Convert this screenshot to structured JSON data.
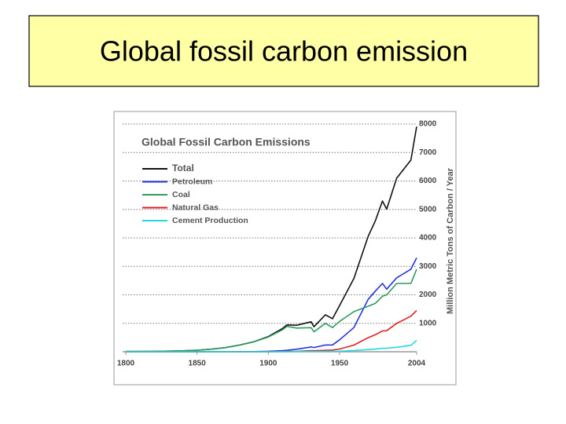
{
  "slide_title": "Global fossil carbon emission",
  "chart_data": {
    "type": "line",
    "title": "Global Fossil Carbon Emissions",
    "y_label": "Million Metric Tons of Carbon / Year",
    "x": [
      1800,
      1820,
      1840,
      1850,
      1860,
      1870,
      1880,
      1890,
      1900,
      1910,
      1913,
      1920,
      1930,
      1932,
      1940,
      1945,
      1950,
      1960,
      1970,
      1975,
      1980,
      1983,
      1990,
      2000,
      2004
    ],
    "xlim": [
      1800,
      2004
    ],
    "xticks": [
      1800,
      1850,
      1900,
      1950,
      2004
    ],
    "ylim": [
      0,
      8000
    ],
    "yticks": [
      1000,
      2000,
      3000,
      4000,
      5000,
      6000,
      7000,
      8000
    ],
    "grid": true,
    "series": [
      {
        "name": "Total",
        "color": "#111111",
        "values": [
          8,
          14,
          33,
          54,
          91,
          147,
          236,
          356,
          534,
          819,
          943,
          932,
          1053,
          881,
          1299,
          1160,
          1630,
          2577,
          4053,
          4596,
          5297,
          5010,
          6099,
          6735,
          7910
        ]
      },
      {
        "name": "Petroleum",
        "color": "#2233dd",
        "values": [
          0,
          0,
          0,
          0,
          0,
          1,
          2,
          5,
          16,
          40,
          49,
          91,
          168,
          150,
          238,
          240,
          423,
          850,
          1839,
          2130,
          2400,
          2200,
          2600,
          2900,
          3300
        ]
      },
      {
        "name": "Coal",
        "color": "#2e9a5e",
        "values": [
          8,
          14,
          33,
          54,
          91,
          146,
          234,
          350,
          518,
          776,
          891,
          832,
          848,
          700,
          1000,
          850,
          1070,
          1410,
          1600,
          1700,
          1950,
          2000,
          2400,
          2400,
          2900
        ]
      },
      {
        "name": "Natural Gas",
        "color": "#e02020",
        "values": [
          0,
          0,
          0,
          0,
          0,
          0,
          0,
          1,
          3,
          8,
          10,
          14,
          40,
          35,
          50,
          60,
          97,
          235,
          493,
          600,
          730,
          740,
          1000,
          1250,
          1450
        ]
      },
      {
        "name": "Cement Production",
        "color": "#22d8e0",
        "values": [
          0,
          0,
          0,
          0,
          0,
          0,
          0,
          0,
          0,
          2,
          3,
          5,
          10,
          8,
          15,
          12,
          18,
          43,
          78,
          95,
          120,
          125,
          157,
          225,
          400
        ]
      }
    ]
  }
}
